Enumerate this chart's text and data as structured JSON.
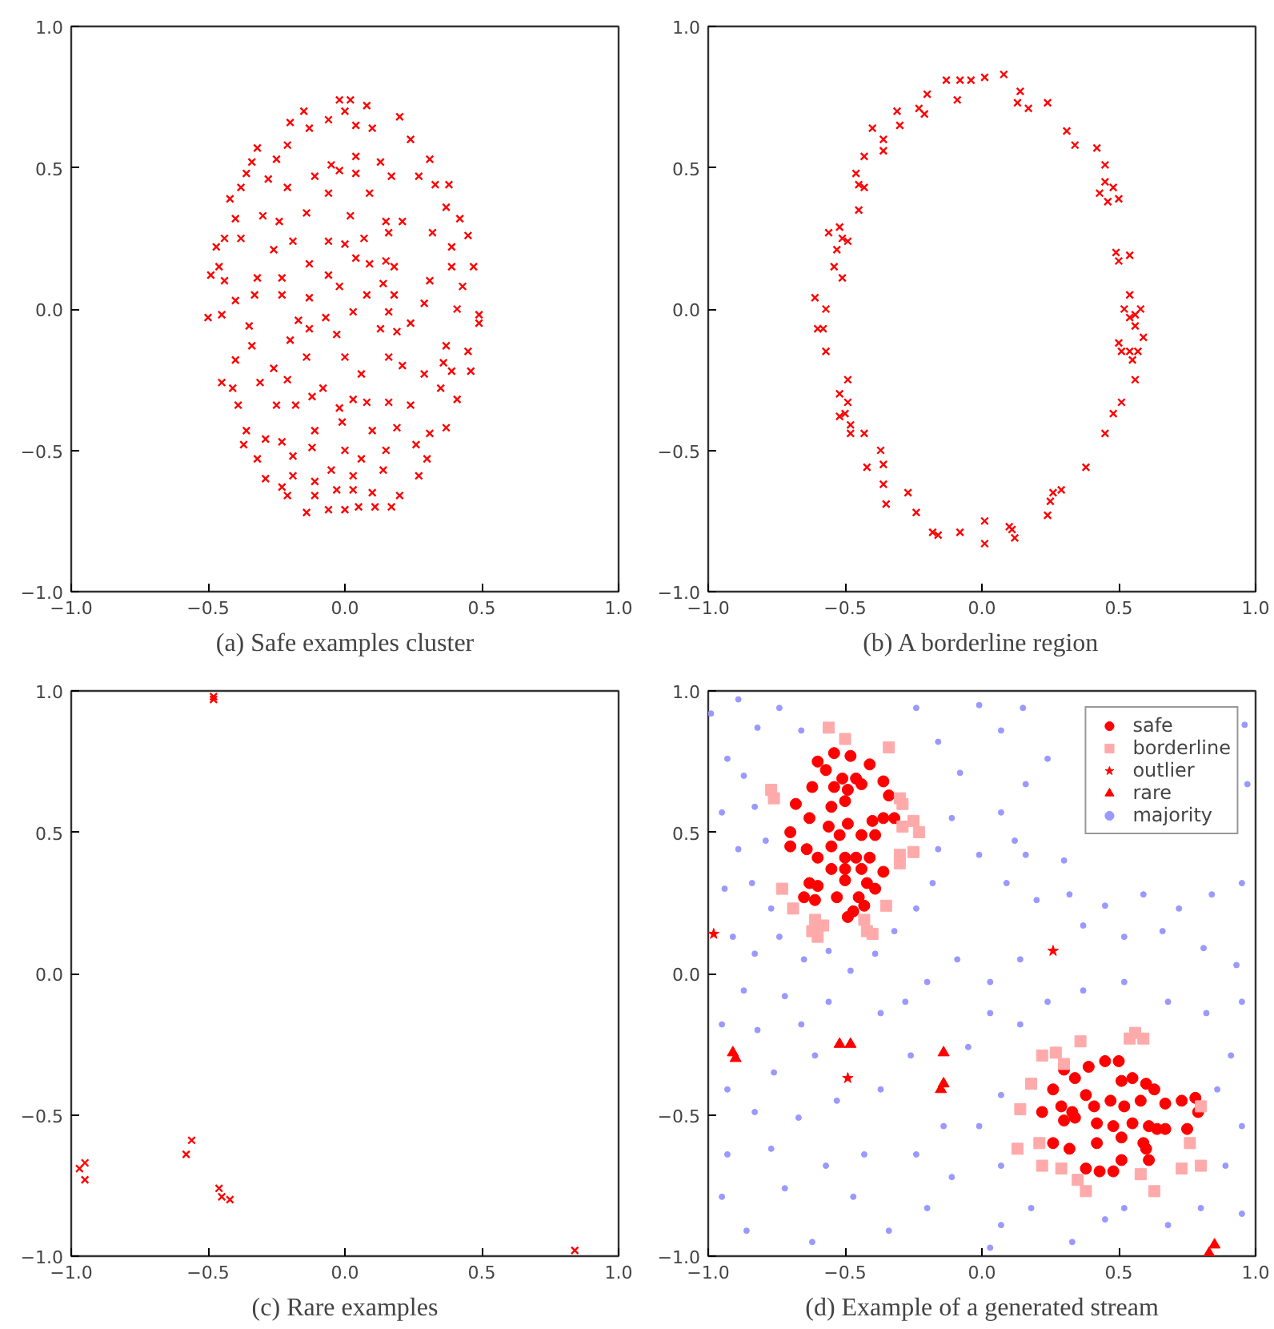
{
  "chart_data": [
    {
      "type": "scatter",
      "title": "(a) Safe examples cluster",
      "marker": "cross",
      "grid": false,
      "xlim": [
        -1,
        1
      ],
      "ylim": [
        -1,
        1
      ],
      "xticks": [
        {
          "value": -1,
          "label": "−1.0"
        },
        {
          "value": -0.5,
          "label": "−0.5"
        },
        {
          "value": 0,
          "label": "0.0"
        },
        {
          "value": 0.5,
          "label": "0.5"
        },
        {
          "value": 1,
          "label": "1.0"
        }
      ],
      "yticks": [
        {
          "value": -1,
          "label": "−1.0"
        },
        {
          "value": -0.5,
          "label": "−0.5"
        },
        {
          "value": 0,
          "label": "0.0"
        },
        {
          "value": 0.5,
          "label": "0.5"
        },
        {
          "value": 1,
          "label": "1.0"
        }
      ],
      "series": [
        {
          "color": "#ff0000",
          "x": [
            -0.02,
            0.02,
            0.08,
            -0.15,
            -0.13,
            -0.06,
            0.0,
            0.04,
            0.1,
            0.2,
            0.24,
            0.31,
            -0.2,
            -0.21,
            -0.25,
            -0.32,
            -0.34,
            -0.36,
            -0.38,
            -0.28,
            -0.21,
            -0.11,
            -0.05,
            -0.02,
            0.04,
            0.04,
            0.13,
            0.17,
            0.27,
            0.33,
            0.38,
            0.37,
            0.42,
            -0.42,
            -0.4,
            -0.3,
            -0.24,
            -0.14,
            -0.06,
            0.02,
            0.09,
            0.15,
            0.21,
            0.32,
            0.45,
            -0.44,
            -0.38,
            -0.47,
            -0.26,
            -0.19,
            -0.06,
            0.0,
            0.07,
            0.16,
            0.39,
            -0.46,
            -0.49,
            -0.44,
            -0.32,
            -0.23,
            -0.13,
            -0.06,
            0.04,
            0.09,
            0.15,
            0.18,
            0.31,
            0.39,
            0.47,
            0.43,
            -0.4,
            -0.33,
            -0.23,
            -0.13,
            -0.02,
            0.08,
            0.14,
            0.18,
            0.29,
            0.41,
            -0.5,
            -0.45,
            -0.35,
            -0.17,
            -0.07,
            0.03,
            0.16,
            0.24,
            0.49,
            0.49,
            -0.2,
            -0.13,
            -0.03,
            0.13,
            0.19,
            0.37,
            0.45,
            -0.34,
            -0.4,
            -0.26,
            -0.14,
            0.0,
            0.06,
            0.16,
            0.21,
            0.36,
            0.39,
            0.46,
            -0.45,
            -0.41,
            -0.31,
            -0.21,
            -0.12,
            -0.08,
            0.03,
            0.08,
            0.16,
            0.29,
            0.35,
            0.41,
            -0.39,
            -0.25,
            -0.18,
            -0.02,
            0.24,
            -0.36,
            -0.29,
            -0.23,
            -0.11,
            -0.01,
            0.1,
            0.19,
            0.31,
            0.37,
            -0.37,
            -0.32,
            -0.19,
            -0.12,
            0.0,
            0.06,
            0.15,
            0.26,
            0.3,
            -0.29,
            -0.23,
            -0.19,
            -0.11,
            -0.05,
            0.03,
            0.14,
            0.27,
            -0.21,
            -0.11,
            -0.03,
            0.03,
            0.1,
            0.2,
            -0.14,
            -0.06,
            0.0,
            0.05,
            0.11,
            0.17
          ],
          "values": [
            0.74,
            0.74,
            0.72,
            0.7,
            0.64,
            0.67,
            0.7,
            0.65,
            0.64,
            0.68,
            0.6,
            0.53,
            0.66,
            0.58,
            0.53,
            0.57,
            0.52,
            0.48,
            0.43,
            0.46,
            0.43,
            0.47,
            0.51,
            0.49,
            0.54,
            0.48,
            0.52,
            0.47,
            0.47,
            0.44,
            0.44,
            0.36,
            0.32,
            0.39,
            0.32,
            0.33,
            0.31,
            0.34,
            0.41,
            0.33,
            0.41,
            0.31,
            0.31,
            0.27,
            0.26,
            0.25,
            0.25,
            0.22,
            0.21,
            0.24,
            0.24,
            0.23,
            0.25,
            0.27,
            0.22,
            0.15,
            0.12,
            0.1,
            0.11,
            0.11,
            0.16,
            0.12,
            0.18,
            0.16,
            0.17,
            0.15,
            0.1,
            0.15,
            0.15,
            0.08,
            0.03,
            0.05,
            0.05,
            0.04,
            0.08,
            0.05,
            0.09,
            0.05,
            0.02,
            0.0,
            -0.03,
            -0.02,
            -0.06,
            -0.04,
            -0.03,
            -0.01,
            -0.01,
            -0.05,
            -0.02,
            -0.05,
            -0.11,
            -0.07,
            -0.09,
            -0.07,
            -0.08,
            -0.13,
            -0.15,
            -0.13,
            -0.18,
            -0.21,
            -0.17,
            -0.17,
            -0.23,
            -0.17,
            -0.2,
            -0.19,
            -0.22,
            -0.22,
            -0.26,
            -0.28,
            -0.26,
            -0.25,
            -0.31,
            -0.28,
            -0.32,
            -0.33,
            -0.33,
            -0.23,
            -0.28,
            -0.32,
            -0.34,
            -0.34,
            -0.34,
            -0.35,
            -0.34,
            -0.43,
            -0.46,
            -0.47,
            -0.43,
            -0.4,
            -0.43,
            -0.42,
            -0.44,
            -0.42,
            -0.48,
            -0.53,
            -0.52,
            -0.49,
            -0.5,
            -0.53,
            -0.5,
            -0.48,
            -0.53,
            -0.6,
            -0.63,
            -0.59,
            -0.61,
            -0.57,
            -0.59,
            -0.57,
            -0.59,
            -0.66,
            -0.66,
            -0.64,
            -0.64,
            -0.65,
            -0.66,
            -0.72,
            -0.71,
            -0.71,
            -0.7,
            -0.7,
            -0.7
          ]
        }
      ]
    },
    {
      "type": "scatter",
      "title": "(b) A borderline region",
      "marker": "cross",
      "grid": false,
      "xlim": [
        -1,
        1
      ],
      "ylim": [
        -1,
        1
      ],
      "xticks": [
        {
          "value": -1,
          "label": "−1.0"
        },
        {
          "value": -0.5,
          "label": "−0.5"
        },
        {
          "value": 0,
          "label": "0.0"
        },
        {
          "value": 0.5,
          "label": "0.5"
        },
        {
          "value": 1,
          "label": "1.0"
        }
      ],
      "yticks": [
        {
          "value": -1,
          "label": "−1.0"
        },
        {
          "value": -0.5,
          "label": "−0.5"
        },
        {
          "value": 0,
          "label": "0.0"
        },
        {
          "value": 0.5,
          "label": "0.5"
        },
        {
          "value": 1,
          "label": "1.0"
        }
      ],
      "series": [
        {
          "color": "#ff0000",
          "x": [
            -0.13,
            -0.08,
            -0.04,
            0.01,
            0.08,
            0.14,
            0.13,
            0.17,
            0.24,
            -0.09,
            -0.2,
            -0.23,
            -0.21,
            -0.31,
            -0.3,
            -0.4,
            -0.36,
            -0.36,
            -0.43,
            -0.46,
            -0.45,
            -0.43,
            -0.45,
            -0.52,
            -0.56,
            -0.51,
            -0.49,
            -0.53,
            -0.54,
            -0.51,
            -0.61,
            -0.57,
            -0.6,
            -0.58,
            -0.57,
            -0.49,
            -0.52,
            -0.49,
            -0.52,
            -0.5,
            -0.48,
            -0.48,
            -0.43,
            -0.37,
            -0.36,
            -0.42,
            -0.36,
            -0.35,
            -0.27,
            -0.24,
            -0.18,
            -0.16,
            -0.08,
            0.01,
            0.01,
            0.1,
            0.11,
            0.12,
            0.24,
            0.25,
            0.26,
            0.29,
            0.38,
            0.45,
            0.48,
            0.51,
            0.56,
            0.57,
            0.54,
            0.51,
            0.5,
            0.55,
            0.59,
            0.56,
            0.56,
            0.54,
            0.58,
            0.52,
            0.54,
            0.5,
            0.54,
            0.49,
            0.5,
            0.46,
            0.43,
            0.45,
            0.48,
            0.45,
            0.42,
            0.34,
            0.31
          ],
          "values": [
            0.81,
            0.81,
            0.81,
            0.82,
            0.83,
            0.77,
            0.73,
            0.71,
            0.73,
            0.74,
            0.76,
            0.71,
            0.69,
            0.7,
            0.65,
            0.64,
            0.6,
            0.56,
            0.54,
            0.48,
            0.44,
            0.43,
            0.35,
            0.29,
            0.27,
            0.25,
            0.24,
            0.21,
            0.15,
            0.11,
            0.04,
            0.0,
            -0.07,
            -0.07,
            -0.15,
            -0.25,
            -0.3,
            -0.33,
            -0.38,
            -0.37,
            -0.41,
            -0.44,
            -0.44,
            -0.5,
            -0.55,
            -0.56,
            -0.62,
            -0.69,
            -0.65,
            -0.72,
            -0.79,
            -0.8,
            -0.79,
            -0.75,
            -0.83,
            -0.77,
            -0.78,
            -0.81,
            -0.73,
            -0.68,
            -0.65,
            -0.64,
            -0.56,
            -0.44,
            -0.37,
            -0.33,
            -0.25,
            -0.15,
            -0.15,
            -0.15,
            -0.12,
            -0.18,
            -0.1,
            -0.06,
            -0.02,
            -0.03,
            0.0,
            0.0,
            0.05,
            0.17,
            0.19,
            0.2,
            0.39,
            0.38,
            0.41,
            0.45,
            0.43,
            0.51,
            0.57,
            0.58,
            0.63
          ]
        }
      ]
    },
    {
      "type": "scatter",
      "title": "(c) Rare examples",
      "marker": "cross",
      "grid": false,
      "xlim": [
        -1,
        1
      ],
      "ylim": [
        -1,
        1
      ],
      "xticks": [
        {
          "value": -1,
          "label": "−1.0"
        },
        {
          "value": -0.5,
          "label": "−0.5"
        },
        {
          "value": 0,
          "label": "0.0"
        },
        {
          "value": 0.5,
          "label": "0.5"
        },
        {
          "value": 1,
          "label": "1.0"
        }
      ],
      "yticks": [
        {
          "value": -1,
          "label": "−1.0"
        },
        {
          "value": -0.5,
          "label": "−0.5"
        },
        {
          "value": 0,
          "label": "0.0"
        },
        {
          "value": 0.5,
          "label": "0.5"
        },
        {
          "value": 1,
          "label": "1.0"
        }
      ],
      "series": [
        {
          "color": "#ff0000",
          "x": [
            -0.48,
            -0.48,
            -0.56,
            -0.58,
            -0.97,
            -0.95,
            -0.95,
            -0.46,
            -0.45,
            -0.42,
            0.84
          ],
          "values": [
            0.98,
            0.97,
            -0.59,
            -0.64,
            -0.69,
            -0.67,
            -0.73,
            -0.76,
            -0.79,
            -0.8,
            -0.98
          ]
        }
      ]
    },
    {
      "type": "scatter",
      "title": "(d) Example of a generated stream",
      "grid": false,
      "legend": "top right",
      "xlim": [
        -1,
        1
      ],
      "ylim": [
        -1,
        1
      ],
      "xticks": [
        {
          "value": -1,
          "label": "−1.0"
        },
        {
          "value": -0.5,
          "label": "−0.5"
        },
        {
          "value": 0,
          "label": "0.0"
        },
        {
          "value": 0.5,
          "label": "0.5"
        },
        {
          "value": 1,
          "label": "1.0"
        }
      ],
      "yticks": [
        {
          "value": -1,
          "label": "−1.0"
        },
        {
          "value": -0.5,
          "label": "−0.5"
        },
        {
          "value": 0,
          "label": "0.0"
        },
        {
          "value": 0.5,
          "label": "0.5"
        },
        {
          "value": 1,
          "label": "1.0"
        }
      ],
      "series": [
        {
          "name": "majority",
          "color": "#9999ff",
          "marker": "circle",
          "x": [
            -0.99,
            -0.89,
            -0.82,
            -0.74,
            -0.66,
            -0.93,
            -0.87,
            -0.95,
            -0.83,
            -0.89,
            -0.79,
            -0.94,
            -0.84,
            -0.77,
            -0.91,
            -0.83,
            -0.74,
            -0.65,
            -0.56,
            -0.48,
            -0.39,
            -0.32,
            -0.24,
            -0.18,
            -0.16,
            -0.11,
            -0.08,
            -0.16,
            -0.24,
            -0.01,
            0.07,
            0.15,
            0.16,
            0.07,
            -0.01,
            0.09,
            0.2,
            0.32,
            0.45,
            0.59,
            0.72,
            0.84,
            0.95,
            0.97,
            0.96,
            0.37,
            0.52,
            0.66,
            0.81,
            0.93,
            0.14,
            0.03,
            -0.09,
            -0.2,
            -0.28,
            -0.37,
            -0.56,
            -0.72,
            -0.87,
            -0.95,
            -0.82,
            -0.66,
            -0.61,
            -0.76,
            -0.93,
            -0.83,
            -0.67,
            -0.53,
            -0.37,
            -0.26,
            -0.05,
            0.03,
            0.14,
            0.24,
            0.37,
            0.52,
            0.68,
            0.82,
            0.95,
            0.91,
            0.86,
            0.95,
            0.89,
            0.95,
            0.8,
            0.68,
            0.52,
            0.45,
            0.33,
            0.18,
            0.07,
            0.03,
            0.07,
            -0.01,
            0.07,
            -0.14,
            -0.24,
            -0.11,
            -0.2,
            -0.34,
            -0.47,
            -0.43,
            -0.57,
            -0.72,
            -0.86,
            -0.95,
            -0.93,
            -0.62,
            -0.77,
            0.16,
            0.3,
            0.24,
            0.12
          ],
          "values": [
            0.92,
            0.97,
            0.87,
            0.94,
            0.86,
            0.76,
            0.7,
            0.57,
            0.59,
            0.44,
            0.47,
            0.3,
            0.32,
            0.23,
            0.13,
            0.07,
            0.13,
            0.05,
            0.08,
            0.01,
            0.07,
            0.15,
            0.23,
            0.32,
            0.44,
            0.55,
            0.71,
            0.82,
            0.94,
            0.95,
            0.86,
            0.94,
            0.67,
            0.57,
            0.42,
            0.32,
            0.26,
            0.28,
            0.24,
            0.28,
            0.23,
            0.28,
            0.32,
            0.67,
            0.88,
            0.17,
            0.13,
            0.15,
            0.09,
            0.03,
            0.05,
            -0.03,
            0.05,
            -0.03,
            -0.1,
            -0.14,
            -0.1,
            -0.08,
            -0.06,
            -0.18,
            -0.2,
            -0.18,
            -0.29,
            -0.35,
            -0.41,
            -0.49,
            -0.51,
            -0.45,
            -0.41,
            -0.29,
            -0.26,
            -0.14,
            -0.18,
            -0.1,
            -0.06,
            -0.03,
            -0.1,
            -0.14,
            -0.1,
            -0.29,
            -0.41,
            -0.54,
            -0.68,
            -0.85,
            -0.83,
            -0.89,
            -0.83,
            -0.87,
            -0.95,
            -0.83,
            -0.89,
            -0.97,
            -0.68,
            -0.54,
            -0.43,
            -0.54,
            -0.64,
            -0.72,
            -0.83,
            -0.91,
            -0.79,
            -0.64,
            -0.68,
            -0.76,
            -0.91,
            -0.79,
            -0.64,
            -0.95,
            -0.62,
            0.42,
            0.4,
            0.76,
            0.47
          ]
        },
        {
          "name": "safe",
          "color": "#ff0000",
          "marker": "circle",
          "x": [
            -0.6,
            -0.54,
            -0.48,
            -0.41,
            -0.57,
            -0.51,
            -0.46,
            -0.36,
            -0.62,
            -0.54,
            -0.49,
            -0.44,
            -0.68,
            -0.5,
            -0.34,
            -0.63,
            -0.55,
            -0.49,
            -0.4,
            -0.36,
            -0.32,
            -0.7,
            -0.56,
            -0.52,
            -0.44,
            -0.39,
            -0.7,
            -0.64,
            -0.55,
            -0.6,
            -0.5,
            -0.46,
            -0.41,
            -0.55,
            -0.5,
            -0.44,
            -0.36,
            -0.63,
            -0.6,
            -0.5,
            -0.42,
            -0.65,
            -0.53,
            -0.45,
            -0.39,
            -0.49,
            -0.47,
            -0.43,
            -0.61,
            0.26,
            0.3,
            0.34,
            0.39,
            0.45,
            0.5,
            0.51,
            0.55,
            0.6,
            0.63,
            0.29,
            0.33,
            0.38,
            0.41,
            0.47,
            0.52,
            0.58,
            0.67,
            0.73,
            0.78,
            0.3,
            0.34,
            0.42,
            0.48,
            0.55,
            0.61,
            0.67,
            0.79,
            0.26,
            0.32,
            0.42,
            0.51,
            0.59,
            0.64,
            0.75,
            0.38,
            0.43,
            0.48,
            0.51,
            0.6,
            0.61,
            0.22
          ],
          "values": [
            0.75,
            0.78,
            0.77,
            0.74,
            0.72,
            0.69,
            0.69,
            0.68,
            0.66,
            0.66,
            0.65,
            0.67,
            0.6,
            0.61,
            0.63,
            0.55,
            0.59,
            0.53,
            0.54,
            0.55,
            0.55,
            0.5,
            0.52,
            0.49,
            0.49,
            0.49,
            0.45,
            0.44,
            0.45,
            0.41,
            0.41,
            0.41,
            0.41,
            0.37,
            0.37,
            0.37,
            0.36,
            0.32,
            0.31,
            0.33,
            0.32,
            0.27,
            0.27,
            0.27,
            0.3,
            0.2,
            0.22,
            0.24,
            0.26,
            -0.41,
            -0.34,
            -0.37,
            -0.33,
            -0.31,
            -0.31,
            -0.38,
            -0.37,
            -0.39,
            -0.41,
            -0.47,
            -0.49,
            -0.43,
            -0.47,
            -0.45,
            -0.47,
            -0.45,
            -0.46,
            -0.45,
            -0.44,
            -0.52,
            -0.51,
            -0.53,
            -0.54,
            -0.53,
            -0.54,
            -0.55,
            -0.49,
            -0.6,
            -0.62,
            -0.6,
            -0.58,
            -0.6,
            -0.55,
            -0.55,
            -0.69,
            -0.7,
            -0.7,
            -0.66,
            -0.62,
            -0.66,
            -0.49
          ]
        },
        {
          "name": "borderline",
          "color": "#ffaaaa",
          "marker": "square",
          "x": [
            -0.56,
            -0.5,
            -0.34,
            -0.77,
            -0.76,
            -0.3,
            -0.29,
            -0.29,
            -0.25,
            -0.23,
            -0.3,
            -0.25,
            -0.3,
            -0.73,
            -0.69,
            -0.61,
            -0.58,
            -0.62,
            -0.6,
            -0.43,
            -0.42,
            -0.4,
            -0.35,
            0.36,
            0.22,
            0.27,
            0.3,
            0.18,
            0.14,
            0.54,
            0.56,
            0.59,
            0.8,
            0.21,
            0.13,
            0.22,
            0.29,
            0.35,
            0.38,
            0.58,
            0.63,
            0.73,
            0.8,
            0.76
          ],
          "values": [
            0.87,
            0.83,
            0.8,
            0.65,
            0.62,
            0.62,
            0.6,
            0.52,
            0.54,
            0.5,
            0.42,
            0.43,
            0.39,
            0.3,
            0.23,
            0.19,
            0.17,
            0.15,
            0.13,
            0.19,
            0.15,
            0.14,
            0.24,
            -0.24,
            -0.29,
            -0.28,
            -0.32,
            -0.39,
            -0.48,
            -0.23,
            -0.21,
            -0.23,
            -0.47,
            -0.6,
            -0.62,
            -0.68,
            -0.69,
            -0.73,
            -0.77,
            -0.71,
            -0.77,
            -0.69,
            -0.68,
            -0.6
          ]
        },
        {
          "name": "outlier",
          "color": "#ff0000",
          "marker": "star",
          "x": [
            -0.98,
            0.26,
            -0.49
          ],
          "values": [
            0.14,
            0.08,
            -0.37
          ]
        },
        {
          "name": "rare",
          "color": "#ff0000",
          "marker": "triangle",
          "x": [
            -0.91,
            -0.9,
            -0.52,
            -0.48,
            -0.14,
            -0.14,
            -0.15,
            0.83,
            0.85
          ],
          "values": [
            -0.28,
            -0.3,
            -0.25,
            -0.25,
            -0.28,
            -0.39,
            -0.41,
            -0.99,
            -0.96
          ]
        }
      ]
    }
  ]
}
